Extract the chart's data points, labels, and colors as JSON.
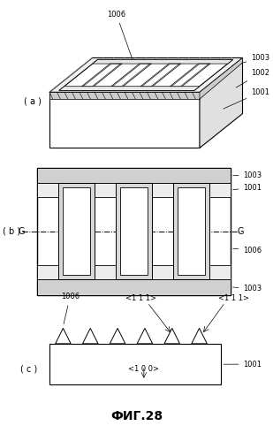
{
  "title": "ФИГ.28",
  "bg_color": "#ffffff",
  "label_a": "( a )",
  "label_b": "( b )",
  "label_c": "( c )"
}
